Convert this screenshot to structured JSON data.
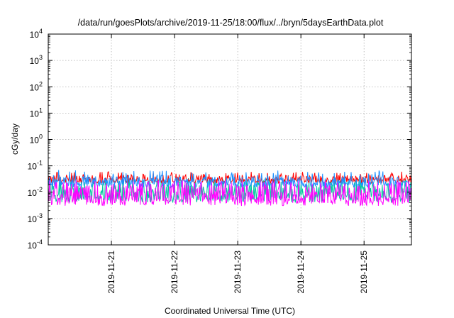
{
  "chart_data": {
    "type": "line",
    "title": "/data/run/goesPlots/archive/2019-11-25/18:00/flux/../bryn/5daysEarthData.plot",
    "xlabel": "Coordinated Universal Time (UTC)",
    "ylabel": "cGy/day",
    "y_scale": "log",
    "ylim": [
      0.0001,
      10000
    ],
    "xlim": [
      "2019-11-20 00:00",
      "2019-11-25 18:00"
    ],
    "y_ticks": [
      {
        "value": 0.0001,
        "base": "10",
        "exp": "-4"
      },
      {
        "value": 0.001,
        "base": "10",
        "exp": "-3"
      },
      {
        "value": 0.01,
        "base": "10",
        "exp": "-2"
      },
      {
        "value": 0.1,
        "base": "10",
        "exp": "-1"
      },
      {
        "value": 1,
        "base": "10",
        "exp": "0"
      },
      {
        "value": 10,
        "base": "10",
        "exp": "1"
      },
      {
        "value": 100,
        "base": "10",
        "exp": "2"
      },
      {
        "value": 1000,
        "base": "10",
        "exp": "3"
      },
      {
        "value": 10000,
        "base": "10",
        "exp": "4"
      }
    ],
    "x_ticks": [
      {
        "value": "2019-11-21 00:00",
        "label": "2019-11-21"
      },
      {
        "value": "2019-11-22 00:00",
        "label": "2019-11-22"
      },
      {
        "value": "2019-11-23 00:00",
        "label": "2019-11-23"
      },
      {
        "value": "2019-11-24 00:00",
        "label": "2019-11-24"
      },
      {
        "value": "2019-11-25 00:00",
        "label": "2019-11-25"
      }
    ],
    "grid": true,
    "legend": "none",
    "series": [
      {
        "color": "#ff0000",
        "typical_min": 0.022,
        "typical_max": 0.045,
        "peak": 0.06
      },
      {
        "color": "#1e90ff",
        "typical_min": 0.015,
        "typical_max": 0.04,
        "peak": 0.07
      },
      {
        "color": "#00c8a0",
        "typical_min": 0.004,
        "typical_max": 0.025,
        "peak": 0.035
      },
      {
        "color": "#ff00ff",
        "typical_min": 0.003,
        "typical_max": 0.022,
        "peak": 0.028
      }
    ]
  }
}
